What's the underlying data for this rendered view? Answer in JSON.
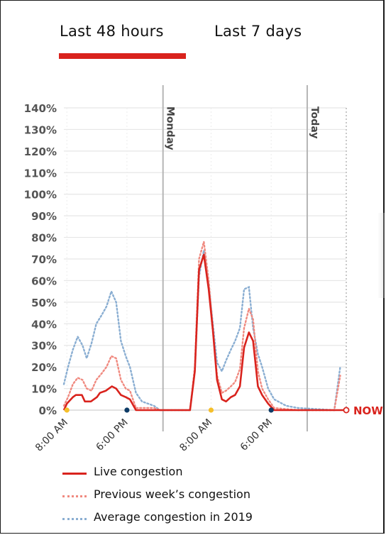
{
  "tabs": [
    {
      "label": "Last 48 hours",
      "active": true
    },
    {
      "label": "Last 7 days",
      "active": false
    }
  ],
  "colors": {
    "accent": "#d9231d",
    "live": "#d9231d",
    "previous": "#f08a80",
    "average": "#8aaed2",
    "grid": "#e6e6e6",
    "tick_text": "#555555",
    "divider": "#b5b5b5",
    "sunrise_dot": "#f5bf2a",
    "sunset_dot": "#0d3b66"
  },
  "chart_data": {
    "type": "line",
    "ylim": [
      0,
      140
    ],
    "yticks": [
      "0%",
      "10%",
      "20%",
      "30%",
      "40%",
      "50%",
      "60%",
      "70%",
      "80%",
      "90%",
      "100%",
      "110%",
      "120%",
      "130%",
      "140%"
    ],
    "x_labels": [
      {
        "label": "8:00 AM",
        "x": 8
      },
      {
        "label": "6:00 PM",
        "x": 18
      },
      {
        "label": "8:00 AM",
        "x": 32
      },
      {
        "label": "6:00 PM",
        "x": 42
      }
    ],
    "day_dividers": [
      {
        "label": "Monday",
        "x": 24
      },
      {
        "label": "Today",
        "x": 48
      }
    ],
    "now_label": "NOW",
    "now_x": 54.5,
    "markers": [
      {
        "type": "sunrise",
        "x": 8
      },
      {
        "type": "sunset",
        "x": 18
      },
      {
        "type": "sunrise",
        "x": 32
      },
      {
        "type": "sunset",
        "x": 42
      }
    ],
    "series": [
      {
        "name": "Live congestion",
        "style": "solid",
        "points": [
          [
            7.5,
            0
          ],
          [
            8,
            3
          ],
          [
            9,
            6
          ],
          [
            9.5,
            7
          ],
          [
            10.5,
            7
          ],
          [
            11,
            4
          ],
          [
            12,
            4
          ],
          [
            13,
            6
          ],
          [
            13.5,
            8
          ],
          [
            14.5,
            9
          ],
          [
            15.5,
            11
          ],
          [
            16.2,
            10
          ],
          [
            17,
            7
          ],
          [
            17.8,
            6
          ],
          [
            18.5,
            5
          ],
          [
            19.5,
            0
          ],
          [
            23.5,
            0
          ],
          [
            28.5,
            0
          ],
          [
            29.3,
            18
          ],
          [
            30,
            65
          ],
          [
            30.8,
            72
          ],
          [
            31.6,
            56
          ],
          [
            32.3,
            37
          ],
          [
            33,
            14
          ],
          [
            33.8,
            5
          ],
          [
            34.5,
            4
          ],
          [
            35.3,
            6
          ],
          [
            36,
            7
          ],
          [
            36.8,
            11
          ],
          [
            37.5,
            29
          ],
          [
            38.3,
            36
          ],
          [
            39,
            32
          ],
          [
            39.8,
            11
          ],
          [
            40.5,
            7
          ],
          [
            41.5,
            3
          ],
          [
            42.5,
            0
          ],
          [
            54,
            0
          ]
        ]
      },
      {
        "name": "Previous week’s congestion",
        "style": "dotted",
        "points": [
          [
            7.5,
            2
          ],
          [
            8.2,
            6
          ],
          [
            9,
            12
          ],
          [
            9.8,
            15
          ],
          [
            10.6,
            14
          ],
          [
            11.3,
            10
          ],
          [
            12.1,
            9
          ],
          [
            12.9,
            14
          ],
          [
            13.8,
            17
          ],
          [
            14.6,
            20
          ],
          [
            15.4,
            25
          ],
          [
            16.2,
            24
          ],
          [
            17,
            14
          ],
          [
            17.8,
            10
          ],
          [
            18.5,
            9
          ],
          [
            19.5,
            1
          ],
          [
            22.5,
            1
          ],
          [
            23.5,
            0
          ],
          [
            28.5,
            0
          ],
          [
            29.3,
            20
          ],
          [
            30,
            70
          ],
          [
            30.8,
            78
          ],
          [
            31.6,
            60
          ],
          [
            32.3,
            38
          ],
          [
            33,
            16
          ],
          [
            33.8,
            8
          ],
          [
            34.5,
            9
          ],
          [
            35.3,
            11
          ],
          [
            36,
            13
          ],
          [
            36.8,
            19
          ],
          [
            37.5,
            38
          ],
          [
            38.3,
            47
          ],
          [
            39,
            42
          ],
          [
            39.8,
            18
          ],
          [
            40.5,
            10
          ],
          [
            41.5,
            5
          ],
          [
            42.5,
            1
          ],
          [
            46.5,
            0
          ],
          [
            52.5,
            0
          ],
          [
            53.5,
            16
          ]
        ]
      },
      {
        "name": "Average congestion in 2019",
        "style": "dotted",
        "points": [
          [
            7.5,
            12
          ],
          [
            8.2,
            20
          ],
          [
            9,
            28
          ],
          [
            9.8,
            34
          ],
          [
            10.6,
            30
          ],
          [
            11.3,
            24
          ],
          [
            12.1,
            31
          ],
          [
            12.9,
            40
          ],
          [
            13.8,
            44
          ],
          [
            14.6,
            48
          ],
          [
            15.4,
            55
          ],
          [
            16.2,
            50
          ],
          [
            17,
            32
          ],
          [
            17.8,
            25
          ],
          [
            18.5,
            20
          ],
          [
            19.5,
            8
          ],
          [
            20.5,
            4
          ],
          [
            21.5,
            3
          ],
          [
            22.5,
            2
          ],
          [
            23.5,
            0
          ],
          [
            28.5,
            0
          ],
          [
            29.3,
            18
          ],
          [
            30,
            62
          ],
          [
            30.8,
            74
          ],
          [
            31.6,
            58
          ],
          [
            32.3,
            40
          ],
          [
            33,
            22
          ],
          [
            33.8,
            18
          ],
          [
            34.5,
            23
          ],
          [
            35.3,
            28
          ],
          [
            36,
            32
          ],
          [
            36.8,
            38
          ],
          [
            37.5,
            56
          ],
          [
            38.3,
            57
          ],
          [
            39,
            38
          ],
          [
            39.8,
            26
          ],
          [
            40.5,
            20
          ],
          [
            41.5,
            10
          ],
          [
            42.5,
            5
          ],
          [
            44.5,
            2
          ],
          [
            46.5,
            1
          ],
          [
            52.5,
            0
          ],
          [
            53.5,
            20
          ]
        ]
      }
    ]
  }
}
